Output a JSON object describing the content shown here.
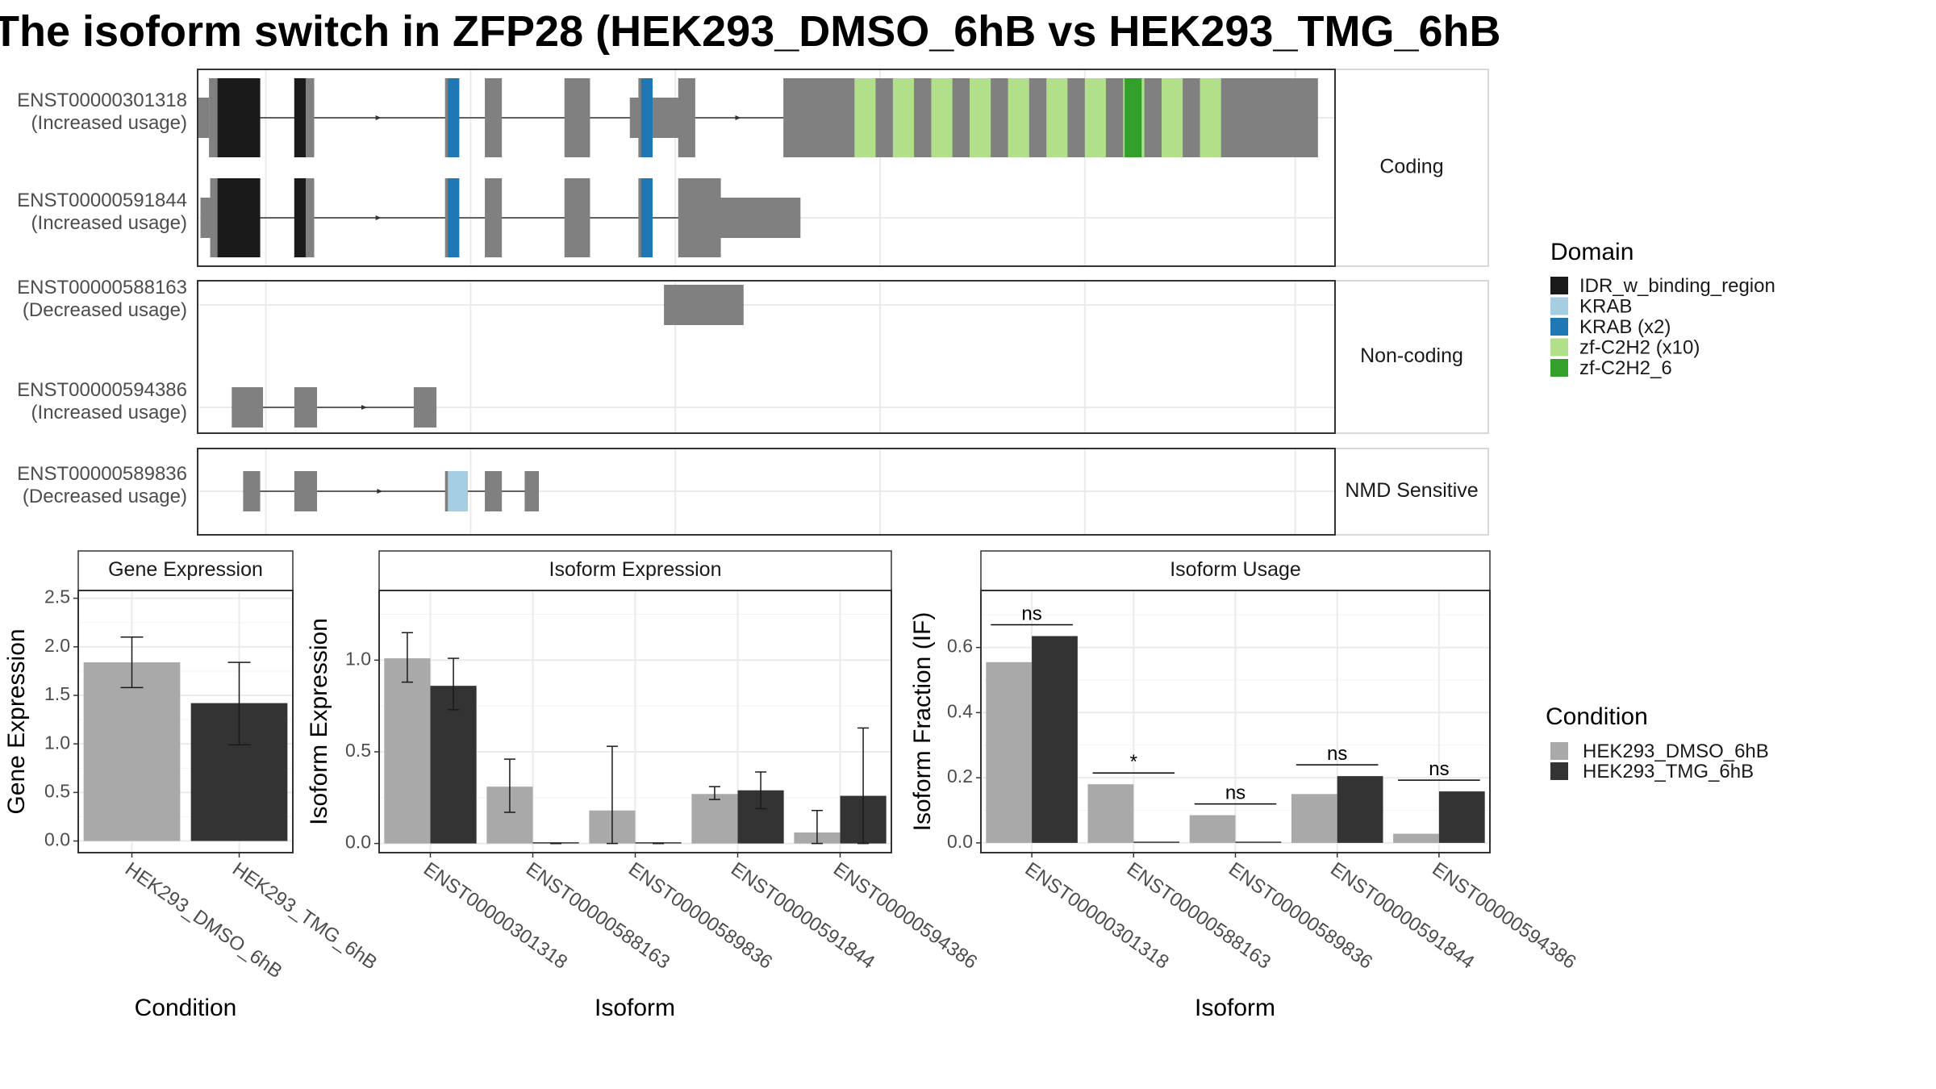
{
  "title": "The isoform switch in ZFP28 (HEK293_DMSO_6hB vs HEK293_TMG_6hB",
  "colors": {
    "exon_grey": "#808080",
    "IDR_w_binding_region": "#1a1a1a",
    "KRAB": "#a6cee3",
    "KRAB (x2)": "#1f78b4",
    "zf-C2H2 (x10)": "#b2df8a",
    "zf-C2H2_6": "#33a02c",
    "HEK293_DMSO_6hB": "#a9a9a9",
    "HEK293_TMG_6hB": "#333333"
  },
  "chart_data": [
    {
      "type": "gene-structure",
      "facets": [
        {
          "label": "Coding",
          "transcripts": [
            {
              "id": "ENST00000301318",
              "usage": "(Increased usage)",
              "utr_exons": [
                [
                  0.0,
                  0.02
                ],
                [
                  0.76,
                  0.87
                ]
              ],
              "cds_exons": [
                [
                  0.02,
                  0.11
                ],
                [
                  0.17,
                  0.205
                ],
                [
                  0.435,
                  0.46
                ],
                [
                  0.505,
                  0.535
                ],
                [
                  0.645,
                  0.69
                ],
                [
                  0.775,
                  0.8
                ],
                [
                  0.845,
                  0.875
                ],
                [
                  1.03,
                  1.97
                ],
                [
                  0.78,
                  0.787
                ]
              ],
              "domains": [
                {
                  "name": "IDR_w_binding_region",
                  "start": 0.035,
                  "end": 0.11
                },
                {
                  "name": "IDR_w_binding_region",
                  "start": 0.17,
                  "end": 0.19
                },
                {
                  "name": "KRAB (x2)",
                  "start": 0.44,
                  "end": 0.46
                },
                {
                  "name": "KRAB (x2)",
                  "start": 0.78,
                  "end": 0.8
                },
                {
                  "name": "zf-C2H2 (x10)",
                  "start": 1.155,
                  "end": 1.83
                },
                {
                  "name": "zf-C2H2_6",
                  "start": 1.63,
                  "end": 1.66
                }
              ]
            },
            {
              "id": "ENST00000591844",
              "usage": "(Increased usage)",
              "utr_exons": [
                [
                  0.005,
                  0.022
                ],
                [
                  0.86,
                  1.06
                ]
              ],
              "cds_exons": [
                [
                  0.022,
                  0.11
                ],
                [
                  0.17,
                  0.205
                ],
                [
                  0.435,
                  0.46
                ],
                [
                  0.505,
                  0.535
                ],
                [
                  0.645,
                  0.69
                ],
                [
                  0.775,
                  0.8
                ],
                [
                  0.845,
                  0.92
                ]
              ],
              "domains": [
                {
                  "name": "IDR_w_binding_region",
                  "start": 0.035,
                  "end": 0.11
                },
                {
                  "name": "IDR_w_binding_region",
                  "start": 0.17,
                  "end": 0.19
                },
                {
                  "name": "KRAB (x2)",
                  "start": 0.44,
                  "end": 0.46
                },
                {
                  "name": "KRAB (x2)",
                  "start": 0.78,
                  "end": 0.8
                }
              ]
            }
          ]
        },
        {
          "label": "Non-coding",
          "transcripts": [
            {
              "id": "ENST00000588163",
              "usage": "(Decreased usage)",
              "utr_exons": [
                [
                  0.82,
                  0.96
                ]
              ],
              "cds_exons": [],
              "domains": []
            },
            {
              "id": "ENST00000594386",
              "usage": "(Increased usage)",
              "utr_exons": [
                [
                  0.06,
                  0.115
                ],
                [
                  0.17,
                  0.21
                ],
                [
                  0.38,
                  0.42
                ]
              ],
              "cds_exons": [],
              "domains": []
            }
          ]
        },
        {
          "label": "NMD Sensitive",
          "transcripts": [
            {
              "id": "ENST00000589836",
              "usage": "(Decreased usage)",
              "utr_exons": [
                [
                  0.08,
                  0.11
                ]
              ],
              "cds_exons": [
                [
                  0.17,
                  0.21
                ],
                [
                  0.435,
                  0.475
                ],
                [
                  0.505,
                  0.535
                ],
                [
                  0.575,
                  0.6
                ]
              ],
              "domains": [
                {
                  "name": "KRAB",
                  "start": 0.44,
                  "end": 0.475
                }
              ]
            }
          ]
        }
      ],
      "legend": {
        "title": "Domain",
        "items": [
          "IDR_w_binding_region",
          "KRAB",
          "KRAB (x2)",
          "zf-C2H2 (x10)",
          "zf-C2H2_6"
        ]
      }
    },
    {
      "type": "bar",
      "title": "Gene Expression",
      "xlabel": "Condition",
      "ylabel": "Gene Expression",
      "ylim": [
        -0.12,
        2.58
      ],
      "yticks": [
        "0.0",
        "0.5",
        "1.0",
        "1.5",
        "2.0",
        "2.5"
      ],
      "categories": [
        "HEK293_DMSO_6hB",
        "HEK293_TMG_6hB"
      ],
      "values": [
        1.84,
        1.42
      ],
      "errors": [
        [
          1.58,
          2.1
        ],
        [
          0.99,
          1.84
        ]
      ]
    },
    {
      "type": "bar",
      "title": "Isoform Expression",
      "xlabel": "Isoform",
      "ylabel": "Isoform Expression",
      "ylim": [
        -0.05,
        1.38
      ],
      "yticks": [
        "0.0",
        "0.5",
        "1.0"
      ],
      "categories": [
        "ENST00000301318",
        "ENST00000588163",
        "ENST00000589836",
        "ENST00000591844",
        "ENST00000594386"
      ],
      "series": [
        {
          "name": "HEK293_DMSO_6hB",
          "values": [
            1.01,
            0.31,
            0.18,
            0.27,
            0.06
          ],
          "errors": [
            [
              0.88,
              1.15
            ],
            [
              0.17,
              0.46
            ],
            [
              0.0,
              0.53
            ],
            [
              0.24,
              0.31
            ],
            [
              0.0,
              0.18
            ]
          ]
        },
        {
          "name": "HEK293_TMG_6hB",
          "values": [
            0.86,
            0.0,
            0.0,
            0.29,
            0.26
          ],
          "errors": [
            [
              0.73,
              1.01
            ],
            [
              0.0,
              0.0
            ],
            [
              0.0,
              0.0
            ],
            [
              0.19,
              0.39
            ],
            [
              0.0,
              0.63
            ]
          ]
        }
      ]
    },
    {
      "type": "bar",
      "title": "Isoform Usage",
      "xlabel": "Isoform",
      "ylabel": "Isoform Fraction (IF)",
      "ylim": [
        -0.03,
        0.775
      ],
      "yticks": [
        "0.0",
        "0.2",
        "0.4",
        "0.6"
      ],
      "categories": [
        "ENST00000301318",
        "ENST00000588163",
        "ENST00000589836",
        "ENST00000591844",
        "ENST00000594386"
      ],
      "series": [
        {
          "name": "HEK293_DMSO_6hB",
          "values": [
            0.555,
            0.18,
            0.085,
            0.15,
            0.028
          ]
        },
        {
          "name": "HEK293_TMG_6hB",
          "values": [
            0.635,
            0.0,
            0.0,
            0.205,
            0.158
          ]
        }
      ],
      "annotations": [
        "ns",
        "*",
        "ns",
        "ns",
        "ns"
      ],
      "legend": {
        "title": "Condition",
        "items": [
          "HEK293_DMSO_6hB",
          "HEK293_TMG_6hB"
        ]
      }
    }
  ]
}
